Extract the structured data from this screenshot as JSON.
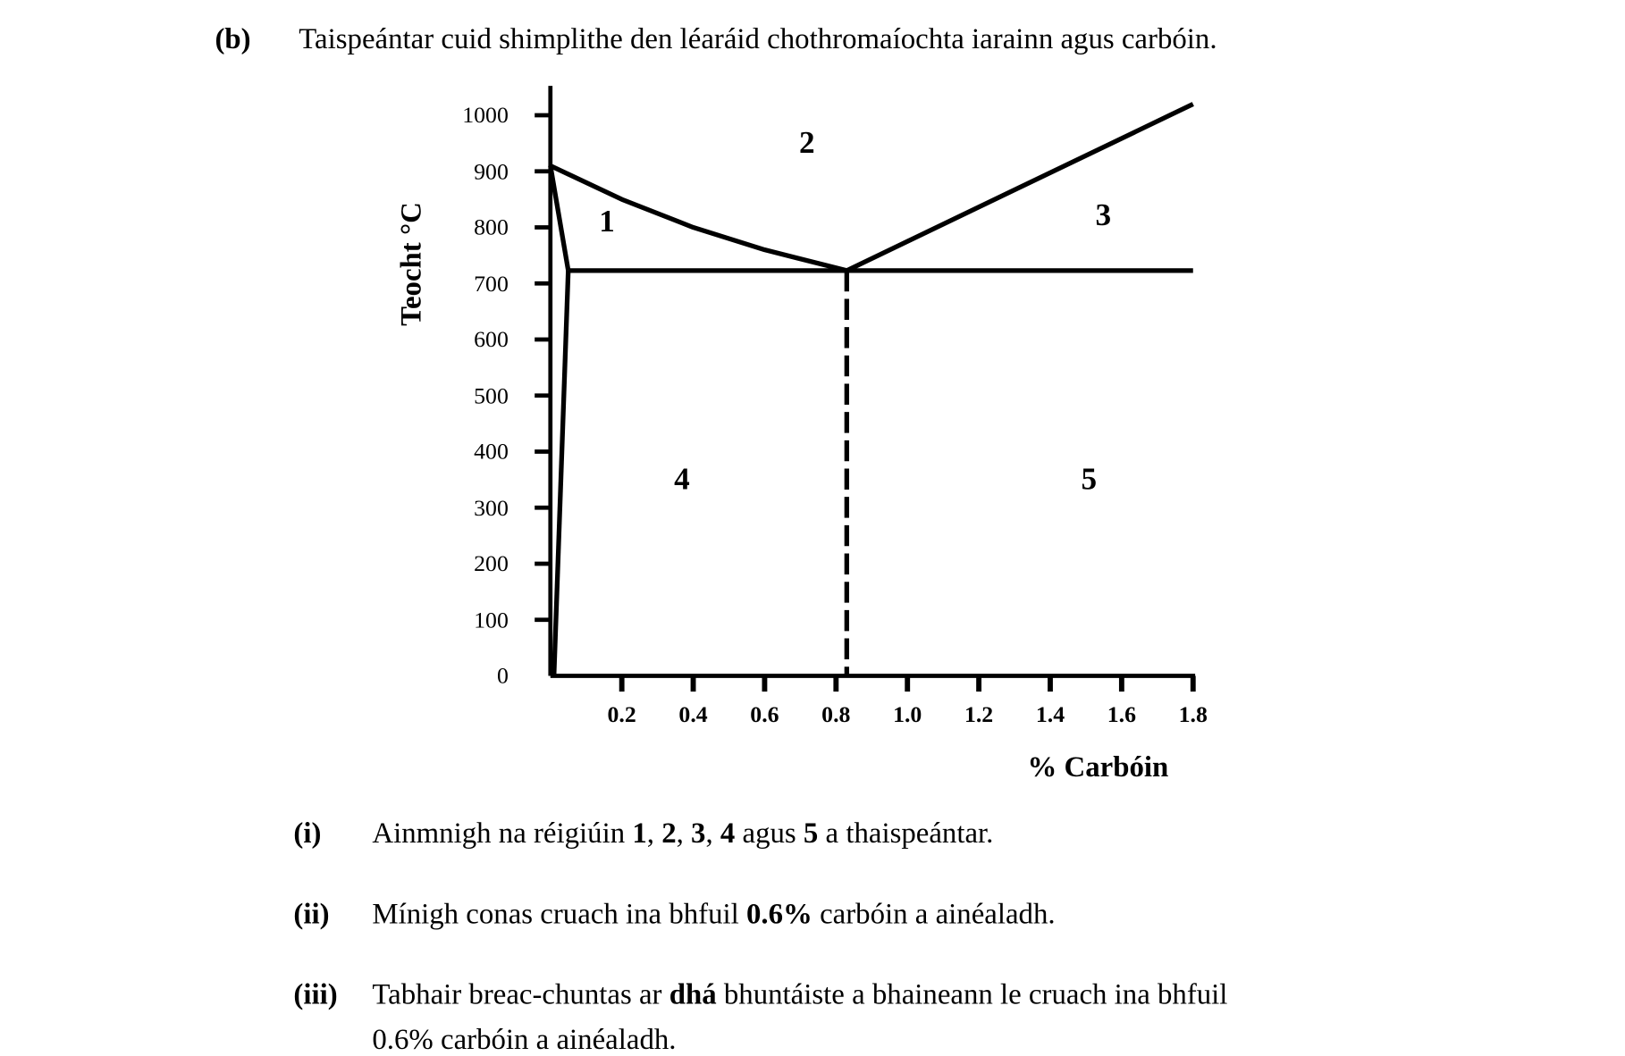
{
  "question": {
    "label": "(b)",
    "text": "Taispeántar cuid shimplithe den léaráid chothromaíochta iarainn agus carbóin."
  },
  "chart_data": {
    "type": "line",
    "title": "",
    "xlabel": "% Carbóin",
    "ylabel": "Teocht °C",
    "xlim": [
      0,
      1.8
    ],
    "ylim": [
      0,
      1000
    ],
    "x_ticks": [
      "0.2",
      "0.4",
      "0.6",
      "0.8",
      "1.0",
      "1.2",
      "1.4",
      "1.6",
      "1.8"
    ],
    "y_ticks": [
      "1000",
      "900",
      "800",
      "700",
      "600",
      "500",
      "400",
      "300",
      "200",
      "100",
      "0"
    ],
    "lines": [
      {
        "points": [
          [
            0,
            910
          ],
          [
            0.05,
            723
          ]
        ]
      },
      {
        "points": [
          [
            0.05,
            723
          ],
          [
            0.01,
            0
          ]
        ]
      },
      {
        "points": [
          [
            0,
            910
          ],
          [
            0.2,
            850
          ],
          [
            0.4,
            800
          ],
          [
            0.6,
            760
          ],
          [
            0.83,
            723
          ]
        ]
      },
      {
        "points": [
          [
            0.05,
            723
          ],
          [
            1.8,
            723
          ]
        ]
      },
      {
        "points": [
          [
            0.83,
            723
          ],
          [
            1.8,
            1020
          ]
        ]
      },
      {
        "points": [
          [
            0.83,
            723
          ],
          [
            0.83,
            0
          ]
        ],
        "style": "dashed"
      }
    ],
    "region_labels": [
      {
        "label": "1",
        "x": 0.16,
        "y": 810
      },
      {
        "label": "2",
        "x": 0.72,
        "y": 950
      },
      {
        "label": "3",
        "x": 1.55,
        "y": 820
      },
      {
        "label": "4",
        "x": 0.37,
        "y": 350
      },
      {
        "label": "5",
        "x": 1.51,
        "y": 350
      }
    ]
  },
  "parts": [
    {
      "label": "(i)",
      "segments": [
        {
          "t": "Ainmnigh na réigiúin ",
          "b": false
        },
        {
          "t": "1",
          "b": true
        },
        {
          "t": ", ",
          "b": false
        },
        {
          "t": "2",
          "b": true
        },
        {
          "t": ", ",
          "b": false
        },
        {
          "t": "3",
          "b": true
        },
        {
          "t": ", ",
          "b": false
        },
        {
          "t": "4",
          "b": true
        },
        {
          "t": " agus ",
          "b": false
        },
        {
          "t": "5",
          "b": true
        },
        {
          "t": " a thaispeántar.",
          "b": false
        }
      ]
    },
    {
      "label": "(ii)",
      "segments": [
        {
          "t": "Mínigh conas cruach ina bhfuil ",
          "b": false
        },
        {
          "t": "0.6%",
          "b": true
        },
        {
          "t": " carbóin a ainéaladh.",
          "b": false
        }
      ]
    },
    {
      "label": "(iii)",
      "segments": [
        {
          "t": "Tabhair breac-chuntas ar ",
          "b": false
        },
        {
          "t": "dhá",
          "b": true
        },
        {
          "t": " bhuntáiste a bhaineann le cruach ina bhfuil",
          "b": false
        }
      ],
      "line2": "0.6% carbóin a ainéaladh."
    }
  ]
}
